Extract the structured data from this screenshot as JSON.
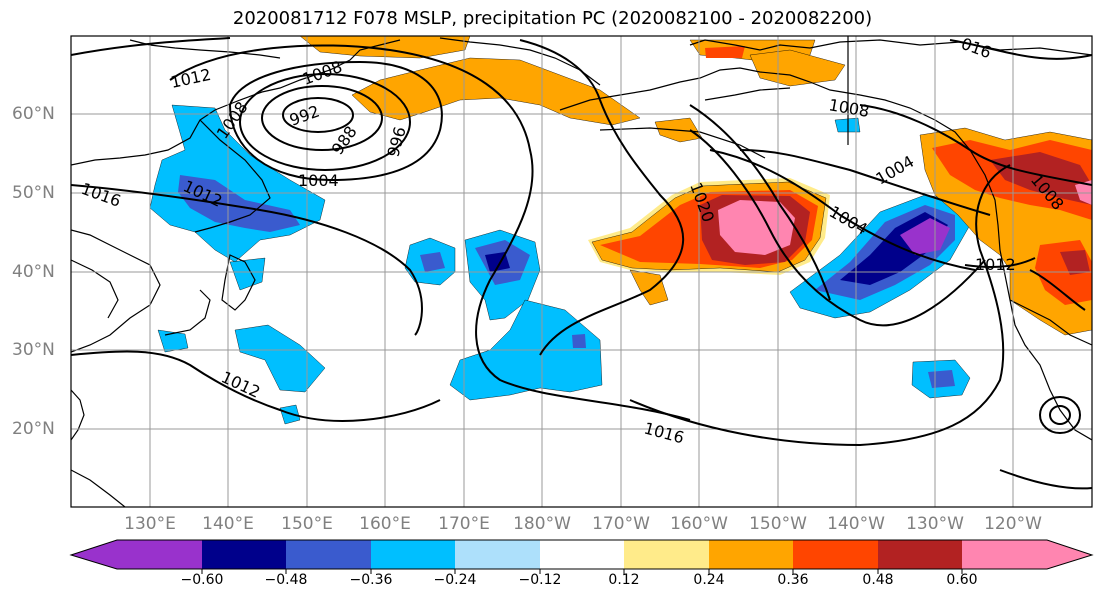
{
  "title": "2020081712 F078 MSLP, precipitation PC (2020082100 - 2020082200)",
  "lat_labels": [
    "60°N",
    "50°N",
    "40°N",
    "30°N",
    "20°N"
  ],
  "lon_labels": [
    "130°E",
    "140°E",
    "150°E",
    "160°E",
    "170°E",
    "180°W",
    "170°W",
    "160°W",
    "150°W",
    "140°W",
    "130°W",
    "120°W"
  ],
  "isobar_labels": [
    "1012",
    "1008",
    "1008",
    "992",
    "988",
    "996",
    "1004",
    "1016",
    "1012",
    "1012",
    "1020",
    "1008",
    "1004",
    "1004",
    "1008",
    "1012",
    "1016",
    "016"
  ],
  "colorbar": {
    "colors": [
      "#9932CC",
      "#00008B",
      "#3A5BCE",
      "#00BFFF",
      "#ADE0FB",
      "#FFFFFF",
      "#FFFFFF",
      "#FFEB8A",
      "#FFA500",
      "#FF4500",
      "#B22222",
      "#FF85B0"
    ],
    "tick_labels": [
      "−0.60",
      "−0.48",
      "−0.36",
      "−0.24",
      "−0.12",
      "0.12",
      "0.24",
      "0.36",
      "0.48",
      "0.60"
    ]
  }
}
